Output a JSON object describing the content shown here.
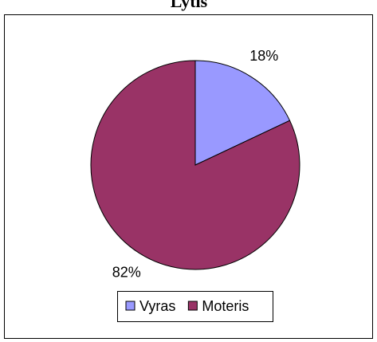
{
  "chart_data": {
    "type": "pie",
    "title": "Lytis",
    "categories": [
      "Vyras",
      "Moteris"
    ],
    "values": [
      18,
      82
    ],
    "value_labels": [
      "18%",
      "82%"
    ],
    "colors": [
      "#9999ff",
      "#993366"
    ],
    "legend": "bottom"
  }
}
